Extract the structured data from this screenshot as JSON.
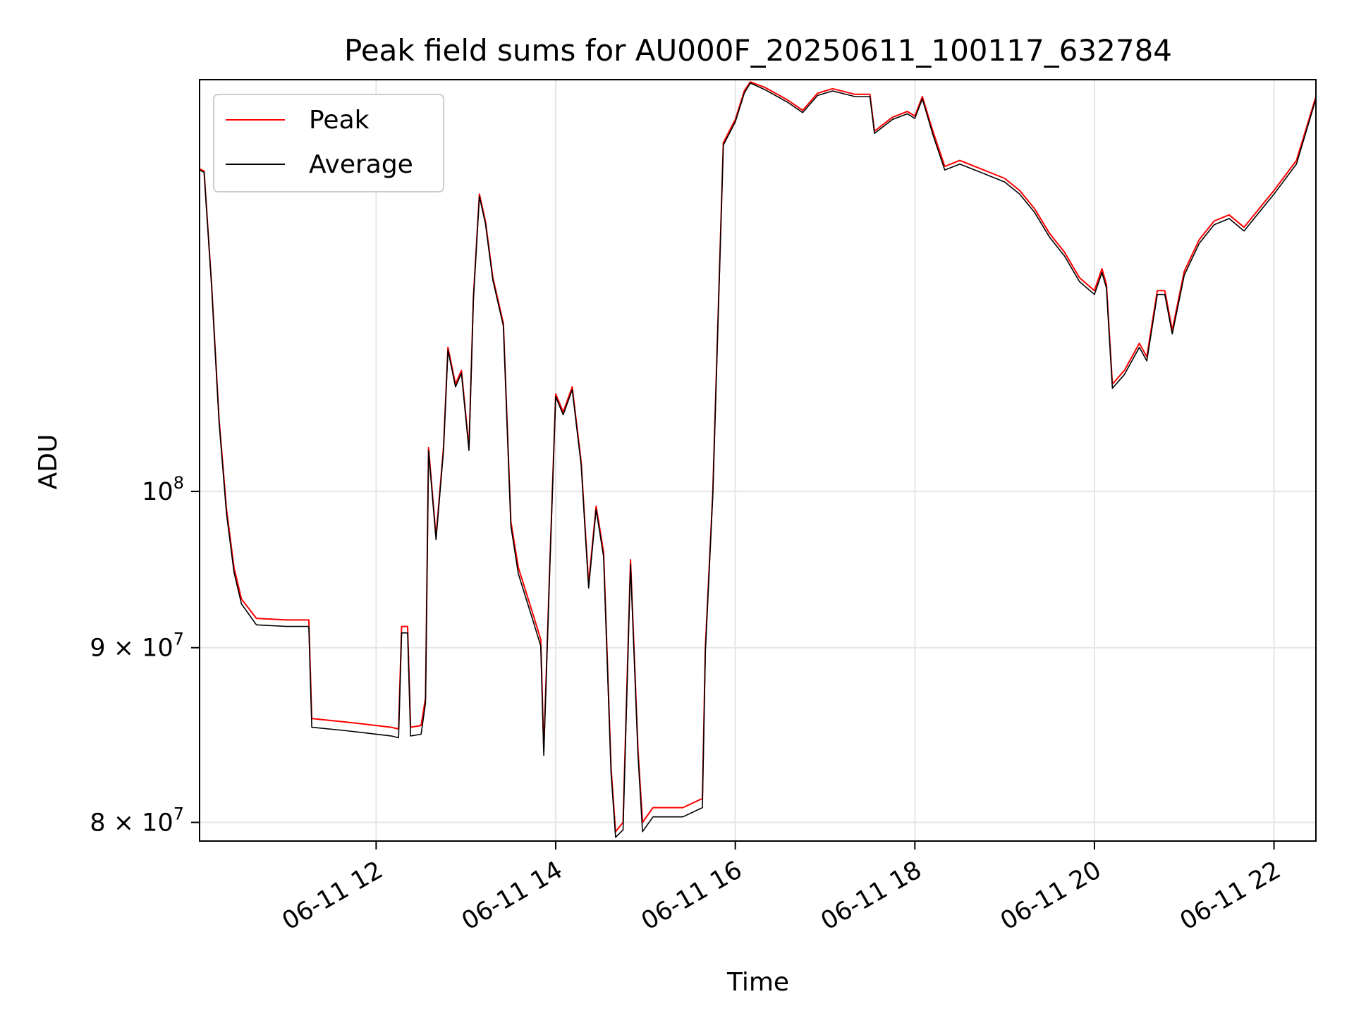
{
  "chart_data": {
    "type": "line",
    "title": "Peak field sums for AU000F_20250611_100117_632784",
    "xlabel": "Time",
    "ylabel": "ADU",
    "y_scale": "log",
    "ylim": [
      79000000,
      132000000
    ],
    "xlim": [
      "2025-06-11 10:02",
      "2025-06-11 22:28"
    ],
    "x_ticks": [
      {
        "value": "2025-06-11 12:00",
        "label": "06-11 12"
      },
      {
        "value": "2025-06-11 14:00",
        "label": "06-11 14"
      },
      {
        "value": "2025-06-11 16:00",
        "label": "06-11 16"
      },
      {
        "value": "2025-06-11 18:00",
        "label": "06-11 18"
      },
      {
        "value": "2025-06-11 20:00",
        "label": "06-11 20"
      },
      {
        "value": "2025-06-11 22:00",
        "label": "06-11 22"
      }
    ],
    "y_ticks": [
      {
        "value": 80000000,
        "base": "8 × 10",
        "exp": "7"
      },
      {
        "value": 90000000,
        "base": "9 × 10",
        "exp": "7"
      },
      {
        "value": 100000000,
        "base": "10",
        "exp": "8"
      }
    ],
    "grid": true,
    "legend_position": "upper-left",
    "series": [
      {
        "name": "Peak",
        "color": "#ff0000",
        "points": [
          [
            "2025-06-11 10:02",
            124300000
          ],
          [
            "2025-06-11 10:05",
            124100000
          ],
          [
            "2025-06-11 10:10",
            115000000
          ],
          [
            "2025-06-11 10:15",
            105000000
          ],
          [
            "2025-06-11 10:20",
            98800000
          ],
          [
            "2025-06-11 10:25",
            95000000
          ],
          [
            "2025-06-11 10:30",
            93000000
          ],
          [
            "2025-06-11 10:40",
            91800000
          ],
          [
            "2025-06-11 11:00",
            91700000
          ],
          [
            "2025-06-11 11:15",
            91700000
          ],
          [
            "2025-06-11 11:17",
            85800000
          ],
          [
            "2025-06-11 11:40",
            85600000
          ],
          [
            "2025-06-11 12:10",
            85300000
          ],
          [
            "2025-06-11 12:15",
            85200000
          ],
          [
            "2025-06-11 12:17",
            91300000
          ],
          [
            "2025-06-11 12:21",
            91300000
          ],
          [
            "2025-06-11 12:23",
            85300000
          ],
          [
            "2025-06-11 12:30",
            85400000
          ],
          [
            "2025-06-11 12:33",
            87000000
          ],
          [
            "2025-06-11 12:35",
            103000000
          ],
          [
            "2025-06-11 12:40",
            97000000
          ],
          [
            "2025-06-11 12:45",
            103000000
          ],
          [
            "2025-06-11 12:48",
            110200000
          ],
          [
            "2025-06-11 12:53",
            107500000
          ],
          [
            "2025-06-11 12:57",
            108500000
          ],
          [
            "2025-06-11 13:02",
            103000000
          ],
          [
            "2025-06-11 13:05",
            114000000
          ],
          [
            "2025-06-11 13:09",
            122200000
          ],
          [
            "2025-06-11 13:13",
            120000000
          ],
          [
            "2025-06-11 13:18",
            115500000
          ],
          [
            "2025-06-11 13:25",
            112000000
          ],
          [
            "2025-06-11 13:30",
            98000000
          ],
          [
            "2025-06-11 13:35",
            95000000
          ],
          [
            "2025-06-11 13:45",
            92000000
          ],
          [
            "2025-06-11 13:50",
            90500000
          ],
          [
            "2025-06-11 13:52",
            84000000
          ],
          [
            "2025-06-11 13:56",
            95000000
          ],
          [
            "2025-06-11 14:00",
            106800000
          ],
          [
            "2025-06-11 14:05",
            105500000
          ],
          [
            "2025-06-11 14:11",
            107300000
          ],
          [
            "2025-06-11 14:17",
            102000000
          ],
          [
            "2025-06-11 14:20",
            97000000
          ],
          [
            "2025-06-11 14:22",
            94000000
          ],
          [
            "2025-06-11 14:27",
            99000000
          ],
          [
            "2025-06-11 14:32",
            96000000
          ],
          [
            "2025-06-11 14:37",
            83000000
          ],
          [
            "2025-06-11 14:40",
            79500000
          ],
          [
            "2025-06-11 14:45",
            80000000
          ],
          [
            "2025-06-11 14:50",
            95500000
          ],
          [
            "2025-06-11 14:55",
            84000000
          ],
          [
            "2025-06-11 14:58",
            80000000
          ],
          [
            "2025-06-11 15:05",
            80800000
          ],
          [
            "2025-06-11 15:25",
            80800000
          ],
          [
            "2025-06-11 15:38",
            81300000
          ],
          [
            "2025-06-11 15:40",
            90000000
          ],
          [
            "2025-06-11 15:45",
            100000000
          ],
          [
            "2025-06-11 15:52",
            126500000
          ],
          [
            "2025-06-11 16:00",
            128500000
          ],
          [
            "2025-06-11 16:06",
            131000000
          ],
          [
            "2025-06-11 16:10",
            131800000
          ],
          [
            "2025-06-11 16:20",
            131300000
          ],
          [
            "2025-06-11 16:35",
            130200000
          ],
          [
            "2025-06-11 16:45",
            129300000
          ],
          [
            "2025-06-11 16:55",
            130800000
          ],
          [
            "2025-06-11 17:05",
            131200000
          ],
          [
            "2025-06-11 17:20",
            130700000
          ],
          [
            "2025-06-11 17:30",
            130700000
          ],
          [
            "2025-06-11 17:33",
            127500000
          ],
          [
            "2025-06-11 17:45",
            128700000
          ],
          [
            "2025-06-11 17:55",
            129200000
          ],
          [
            "2025-06-11 18:00",
            128800000
          ],
          [
            "2025-06-11 18:05",
            130500000
          ],
          [
            "2025-06-11 18:12",
            127500000
          ],
          [
            "2025-06-11 18:20",
            124500000
          ],
          [
            "2025-06-11 18:30",
            125000000
          ],
          [
            "2025-06-11 18:40",
            124500000
          ],
          [
            "2025-06-11 18:50",
            124000000
          ],
          [
            "2025-06-11 19:00",
            123500000
          ],
          [
            "2025-06-11 19:10",
            122500000
          ],
          [
            "2025-06-11 19:20",
            121000000
          ],
          [
            "2025-06-11 19:30",
            119000000
          ],
          [
            "2025-06-11 19:40",
            117500000
          ],
          [
            "2025-06-11 19:50",
            115500000
          ],
          [
            "2025-06-11 20:00",
            114500000
          ],
          [
            "2025-06-11 20:05",
            116200000
          ],
          [
            "2025-06-11 20:08",
            115000000
          ],
          [
            "2025-06-11 20:12",
            107500000
          ],
          [
            "2025-06-11 20:20",
            108500000
          ],
          [
            "2025-06-11 20:30",
            110500000
          ],
          [
            "2025-06-11 20:35",
            109500000
          ],
          [
            "2025-06-11 20:42",
            114500000
          ],
          [
            "2025-06-11 20:47",
            114500000
          ],
          [
            "2025-06-11 20:52",
            111500000
          ],
          [
            "2025-06-11 21:00",
            116000000
          ],
          [
            "2025-06-11 21:10",
            118500000
          ],
          [
            "2025-06-11 21:20",
            120000000
          ],
          [
            "2025-06-11 21:30",
            120500000
          ],
          [
            "2025-06-11 21:40",
            119500000
          ],
          [
            "2025-06-11 21:50",
            121000000
          ],
          [
            "2025-06-11 22:00",
            122500000
          ],
          [
            "2025-06-11 22:15",
            125000000
          ],
          [
            "2025-06-11 22:28",
            130500000
          ]
        ]
      },
      {
        "name": "Average",
        "color": "#000000",
        "points": [
          [
            "2025-06-11 10:02",
            124200000
          ],
          [
            "2025-06-11 10:05",
            124000000
          ],
          [
            "2025-06-11 10:10",
            114900000
          ],
          [
            "2025-06-11 10:15",
            104800000
          ],
          [
            "2025-06-11 10:20",
            98500000
          ],
          [
            "2025-06-11 10:25",
            94700000
          ],
          [
            "2025-06-11 10:30",
            92700000
          ],
          [
            "2025-06-11 10:40",
            91400000
          ],
          [
            "2025-06-11 11:00",
            91300000
          ],
          [
            "2025-06-11 11:15",
            91300000
          ],
          [
            "2025-06-11 11:17",
            85300000
          ],
          [
            "2025-06-11 11:40",
            85100000
          ],
          [
            "2025-06-11 12:10",
            84800000
          ],
          [
            "2025-06-11 12:15",
            84700000
          ],
          [
            "2025-06-11 12:17",
            90900000
          ],
          [
            "2025-06-11 12:21",
            90900000
          ],
          [
            "2025-06-11 12:23",
            84800000
          ],
          [
            "2025-06-11 12:30",
            84900000
          ],
          [
            "2025-06-11 12:33",
            86700000
          ],
          [
            "2025-06-11 12:35",
            102800000
          ],
          [
            "2025-06-11 12:40",
            96800000
          ],
          [
            "2025-06-11 12:45",
            102800000
          ],
          [
            "2025-06-11 12:48",
            110000000
          ],
          [
            "2025-06-11 12:53",
            107300000
          ],
          [
            "2025-06-11 12:57",
            108300000
          ],
          [
            "2025-06-11 13:02",
            102800000
          ],
          [
            "2025-06-11 13:05",
            113800000
          ],
          [
            "2025-06-11 13:09",
            122000000
          ],
          [
            "2025-06-11 13:13",
            119800000
          ],
          [
            "2025-06-11 13:18",
            115300000
          ],
          [
            "2025-06-11 13:25",
            111800000
          ],
          [
            "2025-06-11 13:30",
            97700000
          ],
          [
            "2025-06-11 13:35",
            94600000
          ],
          [
            "2025-06-11 13:45",
            91600000
          ],
          [
            "2025-06-11 13:50",
            90100000
          ],
          [
            "2025-06-11 13:52",
            83700000
          ],
          [
            "2025-06-11 13:56",
            94800000
          ],
          [
            "2025-06-11 14:00",
            106600000
          ],
          [
            "2025-06-11 14:05",
            105300000
          ],
          [
            "2025-06-11 14:11",
            107100000
          ],
          [
            "2025-06-11 14:17",
            101800000
          ],
          [
            "2025-06-11 14:20",
            96800000
          ],
          [
            "2025-06-11 14:22",
            93700000
          ],
          [
            "2025-06-11 14:27",
            98800000
          ],
          [
            "2025-06-11 14:32",
            95700000
          ],
          [
            "2025-06-11 14:37",
            82700000
          ],
          [
            "2025-06-11 14:40",
            79200000
          ],
          [
            "2025-06-11 14:45",
            79600000
          ],
          [
            "2025-06-11 14:50",
            95200000
          ],
          [
            "2025-06-11 14:55",
            83700000
          ],
          [
            "2025-06-11 14:58",
            79500000
          ],
          [
            "2025-06-11 15:05",
            80300000
          ],
          [
            "2025-06-11 15:25",
            80300000
          ],
          [
            "2025-06-11 15:38",
            80800000
          ],
          [
            "2025-06-11 15:40",
            89700000
          ],
          [
            "2025-06-11 15:45",
            99800000
          ],
          [
            "2025-06-11 15:52",
            126300000
          ],
          [
            "2025-06-11 16:00",
            128300000
          ],
          [
            "2025-06-11 16:06",
            130800000
          ],
          [
            "2025-06-11 16:10",
            131700000
          ],
          [
            "2025-06-11 16:20",
            131100000
          ],
          [
            "2025-06-11 16:35",
            130000000
          ],
          [
            "2025-06-11 16:45",
            129100000
          ],
          [
            "2025-06-11 16:55",
            130600000
          ],
          [
            "2025-06-11 17:05",
            131000000
          ],
          [
            "2025-06-11 17:20",
            130500000
          ],
          [
            "2025-06-11 17:30",
            130500000
          ],
          [
            "2025-06-11 17:33",
            127300000
          ],
          [
            "2025-06-11 17:45",
            128500000
          ],
          [
            "2025-06-11 17:55",
            129000000
          ],
          [
            "2025-06-11 18:00",
            128600000
          ],
          [
            "2025-06-11 18:05",
            130300000
          ],
          [
            "2025-06-11 18:12",
            127200000
          ],
          [
            "2025-06-11 18:20",
            124200000
          ],
          [
            "2025-06-11 18:30",
            124700000
          ],
          [
            "2025-06-11 18:40",
            124200000
          ],
          [
            "2025-06-11 18:50",
            123700000
          ],
          [
            "2025-06-11 19:00",
            123200000
          ],
          [
            "2025-06-11 19:10",
            122200000
          ],
          [
            "2025-06-11 19:20",
            120700000
          ],
          [
            "2025-06-11 19:30",
            118700000
          ],
          [
            "2025-06-11 19:40",
            117200000
          ],
          [
            "2025-06-11 19:50",
            115200000
          ],
          [
            "2025-06-11 20:00",
            114200000
          ],
          [
            "2025-06-11 20:05",
            115900000
          ],
          [
            "2025-06-11 20:08",
            114700000
          ],
          [
            "2025-06-11 20:12",
            107200000
          ],
          [
            "2025-06-11 20:20",
            108200000
          ],
          [
            "2025-06-11 20:30",
            110200000
          ],
          [
            "2025-06-11 20:35",
            109200000
          ],
          [
            "2025-06-11 20:42",
            114200000
          ],
          [
            "2025-06-11 20:47",
            114200000
          ],
          [
            "2025-06-11 20:52",
            111200000
          ],
          [
            "2025-06-11 21:00",
            115700000
          ],
          [
            "2025-06-11 21:10",
            118200000
          ],
          [
            "2025-06-11 21:20",
            119700000
          ],
          [
            "2025-06-11 21:30",
            120200000
          ],
          [
            "2025-06-11 21:40",
            119200000
          ],
          [
            "2025-06-11 21:50",
            120700000
          ],
          [
            "2025-06-11 22:00",
            122200000
          ],
          [
            "2025-06-11 22:15",
            124700000
          ],
          [
            "2025-06-11 22:28",
            130300000
          ]
        ]
      }
    ]
  }
}
